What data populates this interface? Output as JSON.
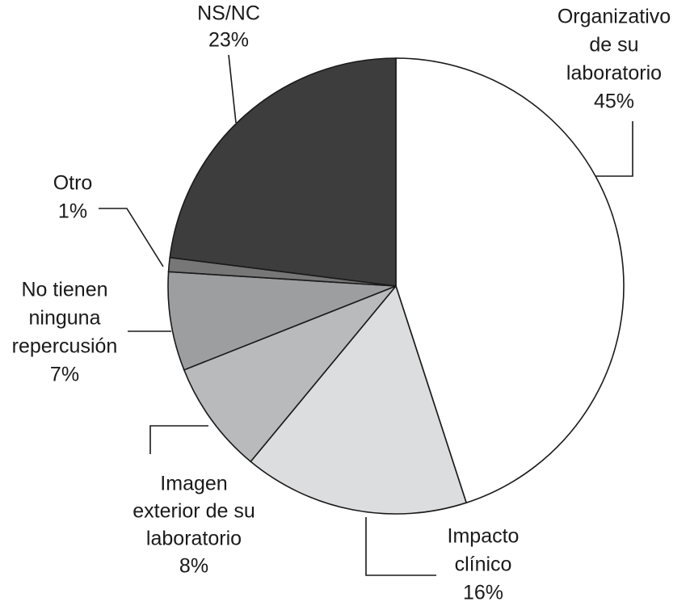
{
  "chart_data": {
    "type": "pie",
    "categories": [
      [
        "Organizativo",
        "de su",
        "laboratorio"
      ],
      [
        "Impacto",
        "clínico"
      ],
      [
        "Imagen",
        "exterior de su",
        "laboratorio"
      ],
      [
        "No tienen",
        "ninguna",
        "repercusión"
      ],
      [
        "Otro"
      ],
      [
        "NS/NC"
      ]
    ],
    "values": [
      45,
      16,
      8,
      7,
      1,
      23
    ],
    "value_labels": [
      "45%",
      "16%",
      "8%",
      "7%",
      "1%",
      "23%"
    ],
    "colors": [
      "#ffffff",
      "#dcdddf",
      "#b9babc",
      "#9d9ea0",
      "#777777",
      "#3d3d3d"
    ]
  }
}
